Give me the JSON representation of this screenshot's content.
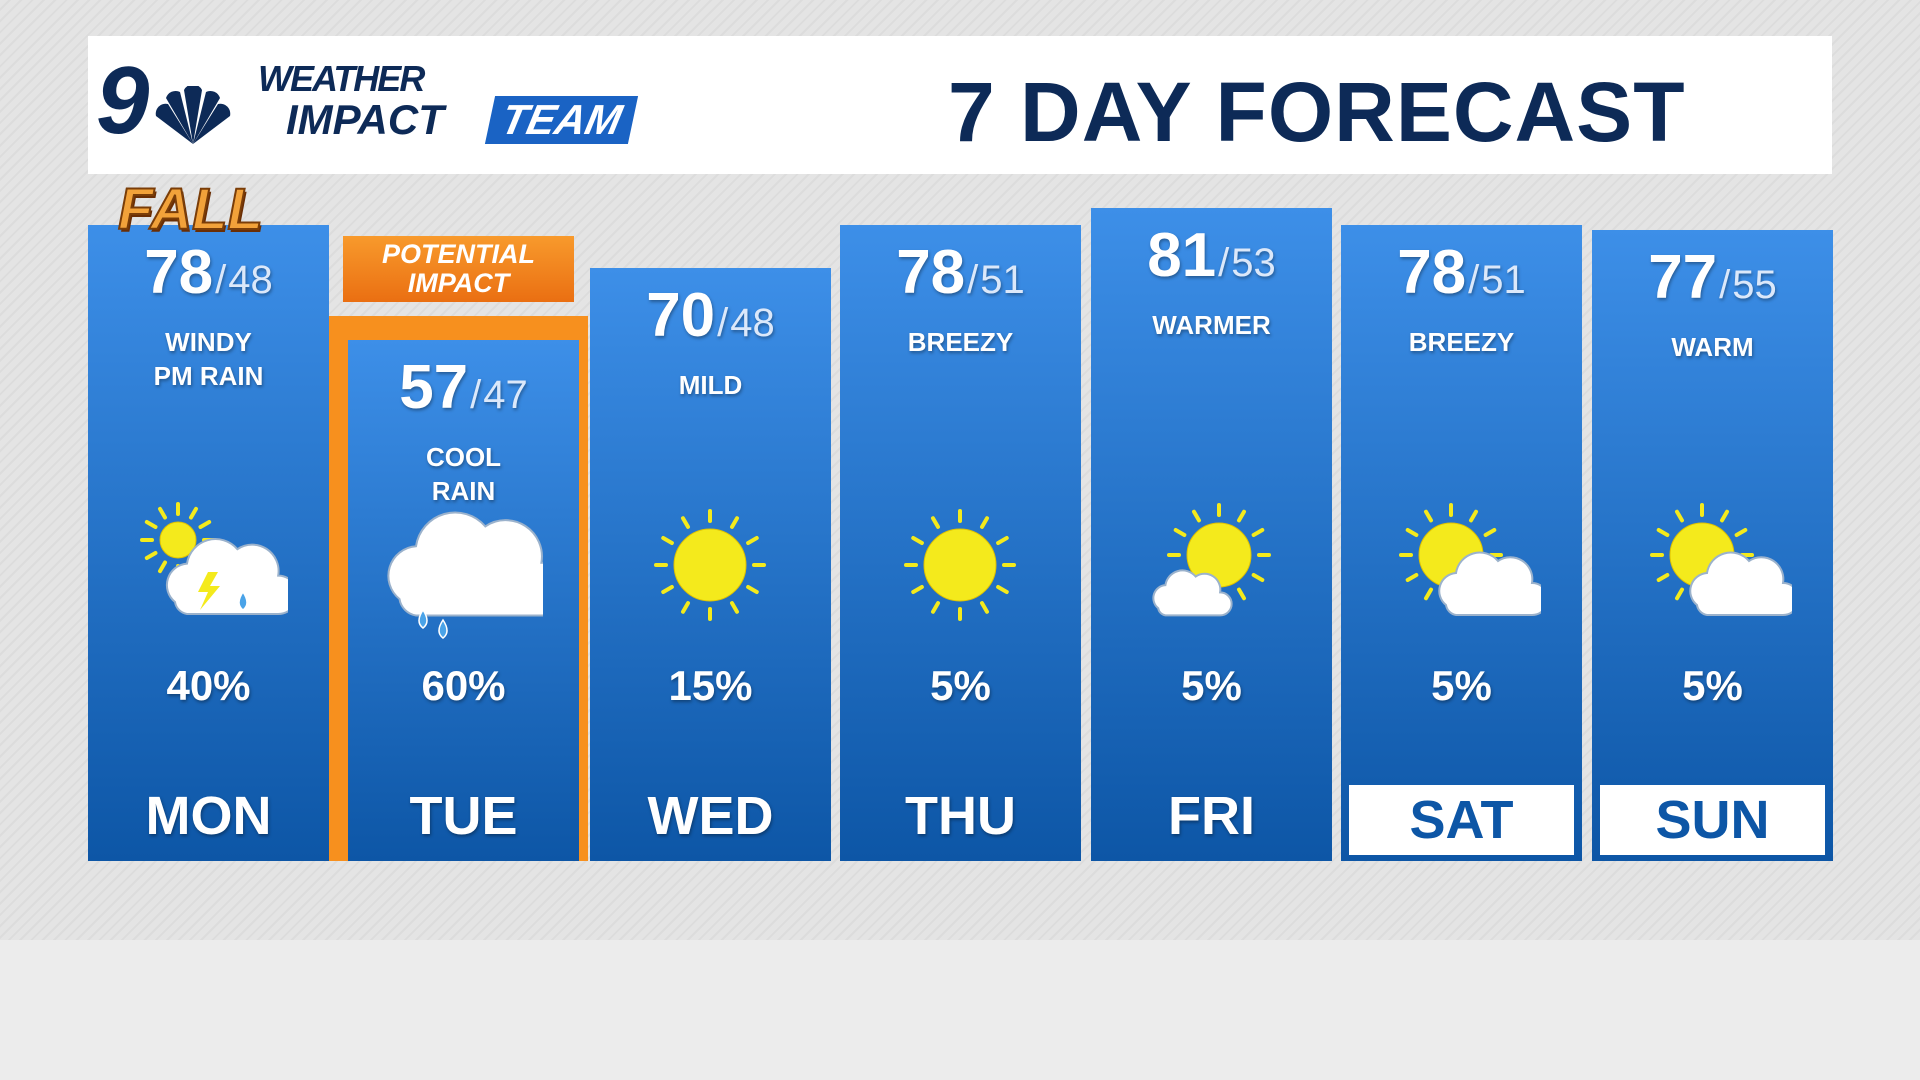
{
  "logo": {
    "number": "9",
    "line1": "WEATHER",
    "line2": "IMPACT",
    "line3": "TEAM",
    "badge": "FALL"
  },
  "title": "7 DAY FORECAST",
  "separator": "/",
  "highlight": [
    "POTENTIAL",
    "IMPACT"
  ],
  "days": [
    {
      "day": "MON",
      "high": 78,
      "low": 48,
      "condition": [
        "WINDY",
        "PM RAIN"
      ],
      "precip": "40%",
      "icon": "storm"
    },
    {
      "day": "TUE",
      "high": 57,
      "low": 47,
      "condition": [
        "COOL",
        "RAIN"
      ],
      "precip": "60%",
      "icon": "rain"
    },
    {
      "day": "WED",
      "high": 70,
      "low": 48,
      "condition": [
        "MILD"
      ],
      "precip": "15%",
      "icon": "sun"
    },
    {
      "day": "THU",
      "high": 78,
      "low": 51,
      "condition": [
        "BREEZY"
      ],
      "precip": "5%",
      "icon": "sun"
    },
    {
      "day": "FRI",
      "high": 81,
      "low": 53,
      "condition": [
        "WARMER"
      ],
      "precip": "5%",
      "icon": "sun-cloud"
    },
    {
      "day": "SAT",
      "high": 78,
      "low": 51,
      "condition": [
        "BREEZY"
      ],
      "precip": "5%",
      "icon": "partly"
    },
    {
      "day": "SUN",
      "high": 77,
      "low": 55,
      "condition": [
        "WARM"
      ],
      "precip": "5%",
      "icon": "partly"
    }
  ]
}
